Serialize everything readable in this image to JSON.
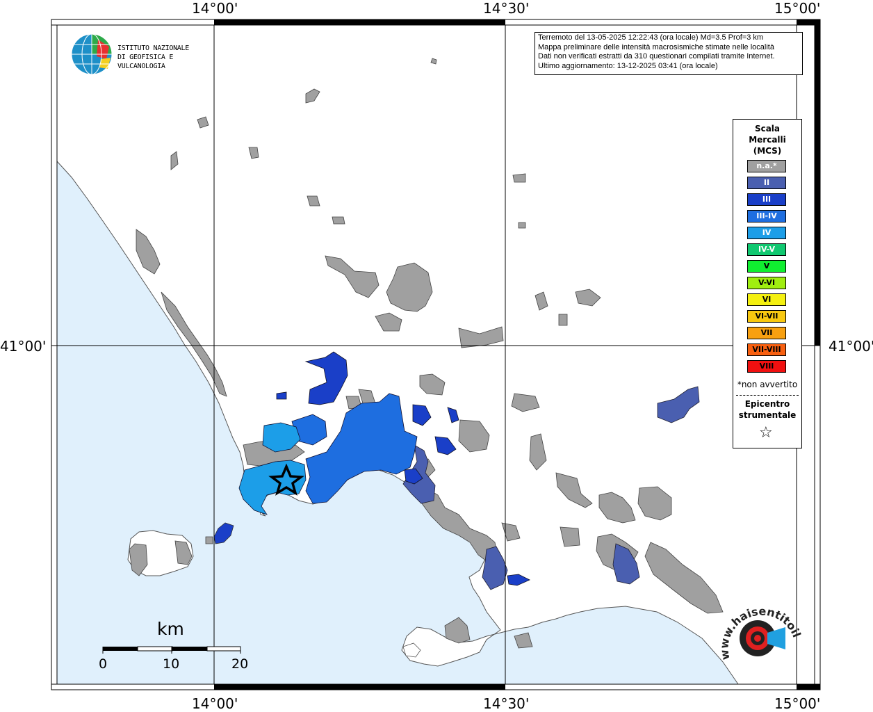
{
  "info": {
    "line1": "Terremoto del 13-05-2025 12:22:43 (ora locale) Md=3.5 Prof=3 km",
    "line2": "Mappa preliminare delle intensità macrosismiche stimate nelle località",
    "line3": "Dati non verificati estratti da 310 questionari compilati tramite Internet.",
    "line4": "Ultimo aggiornamento: 13-12-2025 03:41 (ora locale)"
  },
  "coords": {
    "lon1": "14°00'",
    "lon2": "14°30'",
    "lon3": "15°00'",
    "lat1": "41°00'"
  },
  "logo": {
    "line1": "ISTITUTO NAZIONALE",
    "line2": "DI GEOFISICA E VULCANOLOGIA"
  },
  "legend": {
    "title1": "Scala",
    "title2": "Mercalli",
    "title3": "(MCS)",
    "items": [
      {
        "label": "n.a.*",
        "color": "#a0a0a0"
      },
      {
        "label": "II",
        "color": "#4a5fb0"
      },
      {
        "label": "III",
        "color": "#1a3fc8"
      },
      {
        "label": "III-IV",
        "color": "#1e6ee0"
      },
      {
        "label": "IV",
        "color": "#1c9ee8"
      },
      {
        "label": "IV-V",
        "color": "#10c870"
      },
      {
        "label": "V",
        "color": "#10ee30"
      },
      {
        "label": "V-VI",
        "color": "#a0ee10"
      },
      {
        "label": "VI",
        "color": "#f4f010"
      },
      {
        "label": "VI-VII",
        "color": "#f8c810"
      },
      {
        "label": "VII",
        "color": "#f8a010"
      },
      {
        "label": "VII-VIII",
        "color": "#f86010"
      },
      {
        "label": "VIII",
        "color": "#f01010"
      }
    ],
    "note": "*non avvertito",
    "epicentre1": "Epicentro",
    "epicentre2": "strumentale",
    "star": "☆"
  },
  "scale_bar": {
    "unit": "km",
    "ticks": [
      "0",
      "10",
      "20"
    ]
  },
  "brand": {
    "text": "www.haisentitoilterremoto.it"
  },
  "colors": {
    "sea": "#e0f0fc",
    "land": "#ffffff",
    "na": "#a0a0a0",
    "grid": "#000000"
  }
}
